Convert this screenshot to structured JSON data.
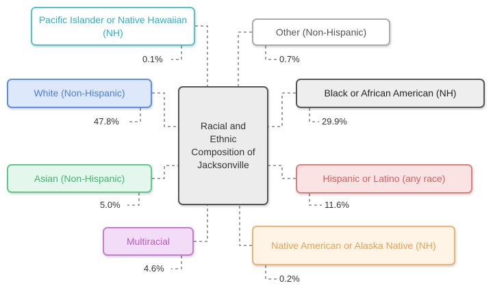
{
  "center": {
    "label": "Racial and Ethnic Composition of Jacksonville"
  },
  "nodes": [
    {
      "label": "Pacific Islander or Native Hawaiian (NH)",
      "value": "0.1%"
    },
    {
      "label": "White (Non-Hispanic)",
      "value": "47.8%"
    },
    {
      "label": "Asian (Non-Hispanic)",
      "value": "5.0%"
    },
    {
      "label": "Multiracial",
      "value": "4.6%"
    },
    {
      "label": "Other (Non-Hispanic)",
      "value": "0.7%"
    },
    {
      "label": "Black or African American (NH)",
      "value": "29.9%"
    },
    {
      "label": "Hispanic or Latino (any race)",
      "value": "11.6%"
    },
    {
      "label": "Native American or Alaska Native (NH)",
      "value": "0.2%"
    }
  ]
}
